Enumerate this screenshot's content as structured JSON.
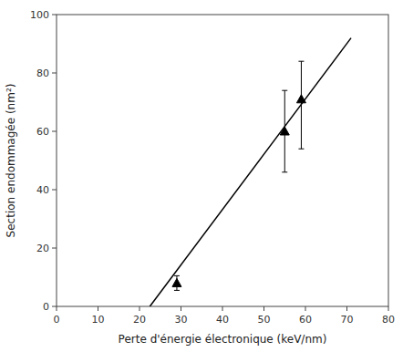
{
  "chart_data": {
    "type": "scatter",
    "xlabel": "Perte d'énergie électronique (keV/nm)",
    "ylabel": "Section endommagée (nm²)",
    "xlim": [
      0,
      80
    ],
    "ylim": [
      0,
      100
    ],
    "xticks": [
      0,
      10,
      20,
      30,
      40,
      50,
      60,
      70,
      80
    ],
    "yticks": [
      0,
      20,
      40,
      60,
      80,
      100
    ],
    "grid": false,
    "series": [
      {
        "type": "line",
        "color": "black",
        "x": [
          22.5,
          71
        ],
        "values": [
          0,
          92
        ]
      },
      {
        "type": "scatter",
        "marker": "triangle",
        "color": "black",
        "x": [
          29,
          55,
          59
        ],
        "values": [
          8,
          60,
          71
        ],
        "error_lower": [
          2.5,
          14,
          17
        ],
        "error_upper": [
          2.5,
          14,
          13
        ]
      }
    ]
  }
}
